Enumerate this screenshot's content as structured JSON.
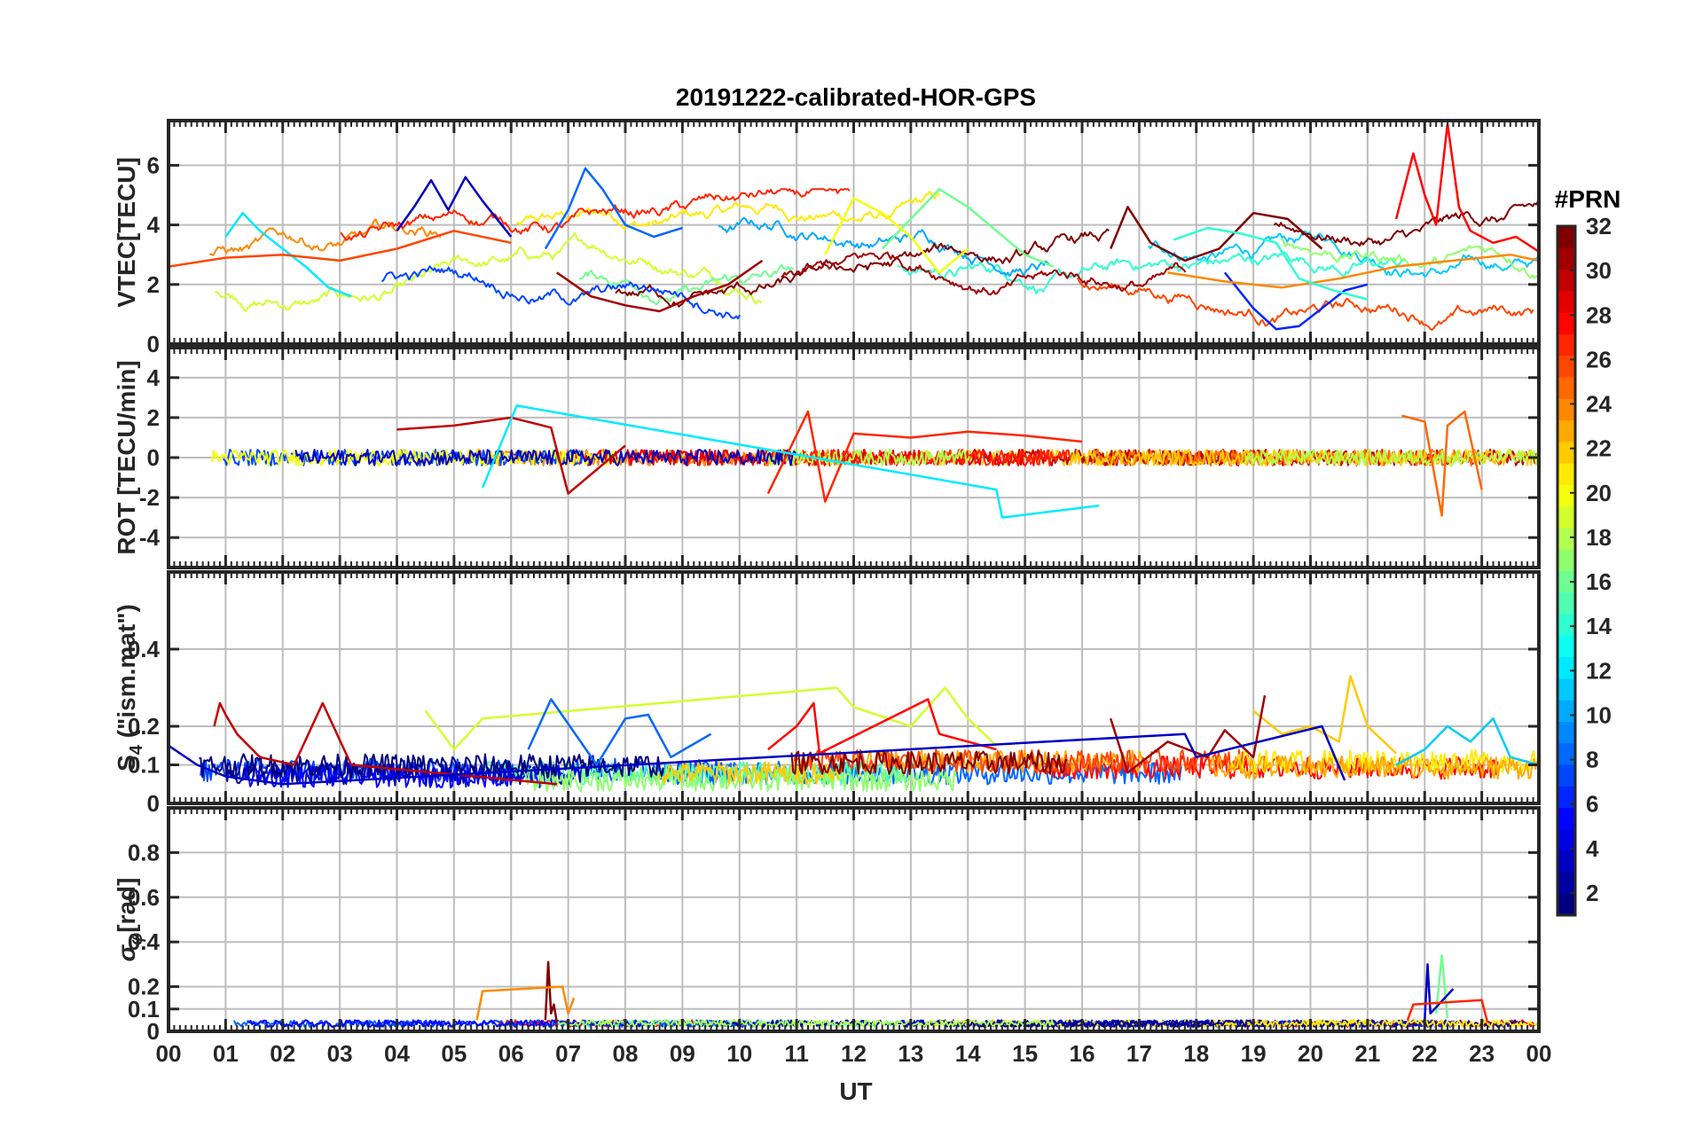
{
  "figure": {
    "title": "20191222-calibrated-HOR-GPS",
    "xlabel": "UT"
  },
  "colorbar": {
    "title": "#PRN",
    "min": 1,
    "max": 32,
    "ticks": [
      2,
      4,
      6,
      8,
      10,
      12,
      14,
      16,
      18,
      20,
      22,
      24,
      26,
      28,
      30,
      32
    ],
    "tick_labels": [
      "2",
      "4",
      "6",
      "8",
      "10",
      "12",
      "14",
      "16",
      "18",
      "20",
      "22",
      "24",
      "26",
      "28",
      "30",
      "32"
    ],
    "colormap": "jet",
    "levels": 32
  },
  "chart_data": [
    {
      "id": "vtec",
      "type": "line",
      "ylabel": "VTEC[TECU]",
      "xlim": [
        0,
        24
      ],
      "ylim": [
        0,
        7.5
      ],
      "xticks": [
        0,
        1,
        2,
        3,
        4,
        5,
        6,
        7,
        8,
        9,
        10,
        11,
        12,
        13,
        14,
        15,
        16,
        17,
        18,
        19,
        20,
        21,
        22,
        23,
        24
      ],
      "yticks": [
        0,
        2,
        4,
        6
      ],
      "ytick_labels": [
        "0",
        "2",
        "4",
        "6"
      ],
      "grid": true,
      "series": [
        {
          "name": "PRN 3",
          "prn": 3,
          "x": [
            4.0,
            4.3,
            4.6,
            4.9,
            5.2,
            5.5,
            6.0
          ],
          "y": [
            3.8,
            4.6,
            5.5,
            4.5,
            5.6,
            4.8,
            3.6
          ]
        },
        {
          "name": "PRN 8",
          "prn": 8,
          "x": [
            6.6,
            7.0,
            7.3,
            7.6,
            8.0,
            8.5,
            9.0
          ],
          "y": [
            3.2,
            4.5,
            5.9,
            5.2,
            4.0,
            3.6,
            3.9
          ]
        },
        {
          "name": "PRN 6",
          "prn": 6,
          "x": [
            18.5,
            19.0,
            19.4,
            19.8,
            20.2,
            20.6,
            21.0
          ],
          "y": [
            2.4,
            1.2,
            0.5,
            0.6,
            1.2,
            1.8,
            2.0
          ]
        },
        {
          "name": "PRN 12",
          "prn": 12,
          "x": [
            1.0,
            1.3,
            1.6,
            2.0,
            2.4,
            2.8,
            3.2
          ],
          "y": [
            3.6,
            4.4,
            3.8,
            3.2,
            2.6,
            1.9,
            1.6
          ]
        },
        {
          "name": "PRN 16",
          "prn": 16,
          "x": [
            12.5,
            13.0,
            13.5,
            14.0,
            14.5,
            15.0,
            15.5
          ],
          "y": [
            3.2,
            4.2,
            5.2,
            4.6,
            3.8,
            3.0,
            2.6
          ]
        },
        {
          "name": "PRN 20",
          "prn": 20,
          "x": [
            11.5,
            12.0,
            12.5,
            13.0,
            13.5,
            14.0
          ],
          "y": [
            3.0,
            4.9,
            4.4,
            3.6,
            2.4,
            3.2
          ]
        },
        {
          "name": "PRN 24",
          "prn": 24,
          "x": [
            17.5,
            18.5,
            19.5,
            20.5,
            21.5,
            22.5,
            23.5,
            24.0
          ],
          "y": [
            2.4,
            2.1,
            1.9,
            2.2,
            2.6,
            2.8,
            3.0,
            2.8
          ]
        },
        {
          "name": "PRN 28",
          "prn": 28,
          "x": [
            21.5,
            21.8,
            22.0,
            22.2,
            22.4,
            22.6,
            22.8,
            23.2,
            23.6,
            24.0
          ],
          "y": [
            4.2,
            6.4,
            5.0,
            4.0,
            7.4,
            4.6,
            3.8,
            3.4,
            3.6,
            3.1
          ]
        },
        {
          "name": "PRN 31",
          "prn": 31,
          "x": [
            6.8,
            7.4,
            8.0,
            8.6,
            9.2,
            9.8,
            10.4
          ],
          "y": [
            2.4,
            1.6,
            1.3,
            1.1,
            1.6,
            2.0,
            2.8
          ]
        },
        {
          "name": "PRN 32",
          "prn": 32,
          "x": [
            16.5,
            16.8,
            17.2,
            17.8,
            18.4,
            19.0,
            19.6,
            20.2
          ],
          "y": [
            3.2,
            4.6,
            3.4,
            2.8,
            3.2,
            4.4,
            4.2,
            3.2
          ]
        },
        {
          "name": "PRN 26",
          "prn": 26,
          "x": [
            0.0,
            1.0,
            2.0,
            3.0,
            4.0,
            5.0,
            6.0
          ],
          "y": [
            2.6,
            2.9,
            3.0,
            2.8,
            3.2,
            3.8,
            3.4
          ]
        },
        {
          "name": "PRN 14",
          "prn": 14,
          "x": [
            17.6,
            18.2,
            18.8,
            19.4,
            19.8,
            20.4,
            21.0
          ],
          "y": [
            3.5,
            3.9,
            3.7,
            3.4,
            2.2,
            1.8,
            1.5
          ]
        }
      ]
    },
    {
      "id": "rot",
      "type": "line",
      "ylabel": "ROT [TECU/min]",
      "xlim": [
        0,
        24
      ],
      "ylim": [
        -5.5,
        5.5
      ],
      "xticks": [
        0,
        1,
        2,
        3,
        4,
        5,
        6,
        7,
        8,
        9,
        10,
        11,
        12,
        13,
        14,
        15,
        16,
        17,
        18,
        19,
        20,
        21,
        22,
        23,
        24
      ],
      "yticks": [
        -4,
        -2,
        0,
        2,
        4
      ],
      "ytick_labels": [
        "-4",
        "-2",
        "0",
        "2",
        "4"
      ],
      "grid": true,
      "series": [
        {
          "name": "PRN 30",
          "prn": 30,
          "x": [
            4.0,
            5.0,
            6.0,
            6.7,
            7.0,
            8.0
          ],
          "y": [
            1.4,
            1.6,
            2.0,
            1.5,
            -1.8,
            0.6
          ]
        },
        {
          "name": "PRN 27",
          "prn": 27,
          "x": [
            10.5,
            11.2,
            11.5,
            12.0,
            13.0,
            14.0,
            15.0,
            16.0
          ],
          "y": [
            -1.8,
            2.3,
            -2.2,
            1.2,
            1.0,
            1.3,
            1.1,
            0.8
          ]
        },
        {
          "name": "PRN 12",
          "prn": 12,
          "x": [
            5.5,
            6.1,
            14.5,
            14.6,
            16.3
          ],
          "y": [
            -1.5,
            2.6,
            -1.6,
            -3.0,
            -2.4
          ]
        },
        {
          "name": "PRN 25",
          "prn": 25,
          "x": [
            21.6,
            22.0,
            22.3,
            22.4,
            22.7,
            23.0
          ],
          "y": [
            2.1,
            1.8,
            -2.9,
            1.6,
            2.3,
            -1.6
          ]
        }
      ]
    },
    {
      "id": "s4",
      "type": "line",
      "ylabel": "S4 (\"ism.mat\")",
      "ylabel_main": "S",
      "ylabel_sub": "4",
      "ylabel_rest": " (\"ism.mat\")",
      "xlim": [
        0,
        24
      ],
      "ylim": [
        0,
        0.6
      ],
      "xticks": [
        0,
        1,
        2,
        3,
        4,
        5,
        6,
        7,
        8,
        9,
        10,
        11,
        12,
        13,
        14,
        15,
        16,
        17,
        18,
        19,
        20,
        21,
        22,
        23,
        24
      ],
      "yticks": [
        0,
        0.1,
        0.2,
        0.4
      ],
      "ytick_labels": [
        "0",
        "0.1",
        "0.2",
        "0.4"
      ],
      "grid": true,
      "series": [
        {
          "name": "PRN 30",
          "prn": 30,
          "x": [
            0.8,
            0.9,
            1.0,
            1.2,
            1.6,
            2.2,
            2.7,
            3.2,
            6.8
          ],
          "y": [
            0.2,
            0.26,
            0.23,
            0.18,
            0.12,
            0.1,
            0.26,
            0.1,
            0.05
          ]
        },
        {
          "name": "PRN 19",
          "prn": 19,
          "x": [
            4.5,
            5.0,
            5.5,
            11.7,
            12.0,
            13.0,
            13.6,
            14.0,
            14.5
          ],
          "y": [
            0.24,
            0.14,
            0.22,
            0.3,
            0.25,
            0.2,
            0.3,
            0.22,
            0.15
          ]
        },
        {
          "name": "PRN 8",
          "prn": 8,
          "x": [
            6.3,
            6.7,
            7.5,
            8.0,
            8.4,
            8.8,
            9.5
          ],
          "y": [
            0.14,
            0.27,
            0.1,
            0.22,
            0.23,
            0.12,
            0.18
          ]
        },
        {
          "name": "PRN 28",
          "prn": 28,
          "x": [
            10.5,
            11.0,
            11.3,
            11.4,
            13.3,
            13.5,
            14.5
          ],
          "y": [
            0.14,
            0.2,
            0.26,
            0.13,
            0.27,
            0.18,
            0.14
          ]
        },
        {
          "name": "PRN 22",
          "prn": 22,
          "x": [
            19.0,
            19.5,
            20.0,
            20.5,
            20.7,
            21.0,
            21.5
          ],
          "y": [
            0.24,
            0.18,
            0.2,
            0.16,
            0.33,
            0.2,
            0.13
          ]
        },
        {
          "name": "PRN 11",
          "prn": 11,
          "x": [
            21.5,
            22.0,
            22.4,
            22.8,
            23.2,
            23.5,
            24.0
          ],
          "y": [
            0.1,
            0.14,
            0.2,
            0.16,
            0.22,
            0.12,
            0.1
          ]
        },
        {
          "name": "PRN 31",
          "prn": 31,
          "x": [
            16.5,
            16.8,
            17.5,
            18.2,
            18.5,
            19.0,
            19.2
          ],
          "y": [
            0.22,
            0.08,
            0.16,
            0.12,
            0.19,
            0.12,
            0.28
          ]
        },
        {
          "name": "PRN 3",
          "prn": 3,
          "x": [
            0.0,
            0.5,
            1.0,
            2.0,
            17.8,
            18.0,
            20.2,
            20.6
          ],
          "y": [
            0.15,
            0.1,
            0.07,
            0.05,
            0.18,
            0.12,
            0.2,
            0.06
          ]
        }
      ]
    },
    {
      "id": "sigma_phi",
      "type": "line",
      "ylabel": "σφ[rad]",
      "ylabel_main": "σ",
      "ylabel_sub": "φ",
      "ylabel_rest": "[rad]",
      "xlim": [
        0,
        24
      ],
      "ylim": [
        0,
        1.0
      ],
      "xticks": [
        0,
        1,
        2,
        3,
        4,
        5,
        6,
        7,
        8,
        9,
        10,
        11,
        12,
        13,
        14,
        15,
        16,
        17,
        18,
        19,
        20,
        21,
        22,
        23,
        24
      ],
      "xtick_labels": [
        "00",
        "01",
        "02",
        "03",
        "04",
        "05",
        "06",
        "07",
        "08",
        "09",
        "10",
        "11",
        "12",
        "13",
        "14",
        "15",
        "16",
        "17",
        "18",
        "19",
        "20",
        "21",
        "22",
        "23",
        "00"
      ],
      "yticks": [
        0,
        0.1,
        0.2,
        0.4,
        0.6,
        0.8
      ],
      "ytick_labels": [
        "0",
        "0.1",
        "0.2",
        "0.4",
        "0.6",
        "0.8"
      ],
      "grid": true,
      "series": [
        {
          "name": "PRN 32",
          "prn": 32,
          "x": [
            6.6,
            6.65,
            6.7,
            6.75,
            6.8
          ],
          "y": [
            0.05,
            0.31,
            0.08,
            0.12,
            0.04
          ]
        },
        {
          "name": "PRN 24",
          "prn": 24,
          "x": [
            5.4,
            5.5,
            6.9,
            7.0,
            7.1
          ],
          "y": [
            0.05,
            0.18,
            0.2,
            0.08,
            0.15
          ]
        },
        {
          "name": "PRN 16",
          "prn": 16,
          "x": [
            22.2,
            22.3,
            22.4
          ],
          "y": [
            0.08,
            0.34,
            0.06
          ]
        },
        {
          "name": "PRN 3",
          "prn": 3,
          "x": [
            22.0,
            22.05,
            22.1,
            22.5
          ],
          "y": [
            0.05,
            0.3,
            0.08,
            0.19
          ]
        },
        {
          "name": "PRN 27",
          "prn": 27,
          "x": [
            21.7,
            21.8,
            23.0,
            23.1
          ],
          "y": [
            0.05,
            0.12,
            0.14,
            0.04
          ]
        }
      ]
    }
  ]
}
